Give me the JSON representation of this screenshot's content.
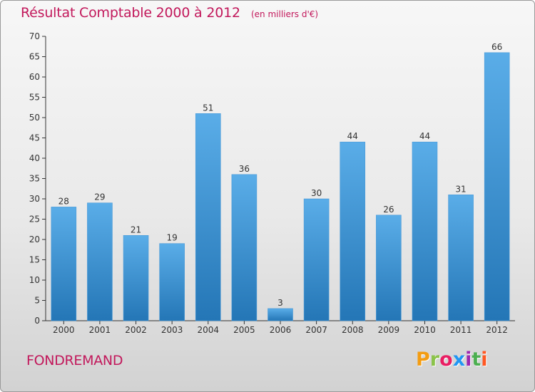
{
  "colors": {
    "accent": "#c2185b",
    "bar_top": "#5aade8",
    "bar_bottom": "#2476b6",
    "axis": "#333333"
  },
  "chart_data": {
    "type": "bar",
    "title": "Résultat Comptable 2000 à 2012",
    "subtitle": "(en milliers d'€)",
    "xlabel": "",
    "ylabel": "",
    "categories": [
      "2000",
      "2001",
      "2002",
      "2003",
      "2004",
      "2005",
      "2006",
      "2007",
      "2008",
      "2009",
      "2010",
      "2011",
      "2012"
    ],
    "values": [
      28,
      29,
      21,
      19,
      51,
      36,
      3,
      30,
      44,
      26,
      44,
      31,
      66
    ],
    "ylim": [
      0,
      70
    ],
    "yticks": [
      0,
      5,
      10,
      15,
      20,
      25,
      30,
      35,
      40,
      45,
      50,
      55,
      60,
      65,
      70
    ],
    "grid": false,
    "data_labels": true,
    "legend": "none"
  },
  "footer": {
    "commune": "FONDREMAND",
    "brand": [
      "P",
      "r",
      "o",
      "x",
      "i",
      "t",
      "i"
    ],
    "brand_colors": [
      "#f39c12",
      "#8bc34a",
      "#e91e63",
      "#2196f3",
      "#9c27b0",
      "#4caf50",
      "#ff5722"
    ]
  }
}
